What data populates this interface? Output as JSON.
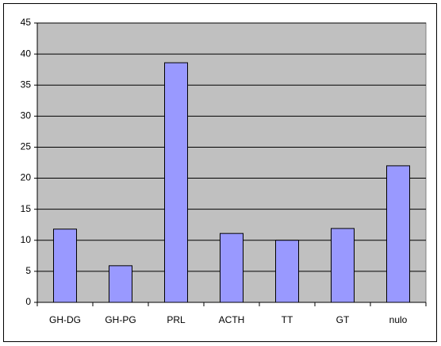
{
  "chart_data": {
    "type": "bar",
    "categories": [
      "GH-DG",
      "GH-PG",
      "PRL",
      "ACTH",
      "TT",
      "GT",
      "nulo"
    ],
    "values": [
      11.8,
      5.9,
      38.6,
      11.1,
      10,
      11.9,
      22
    ],
    "color": "#9999ff",
    "ylim": [
      0,
      45
    ],
    "yticks": [
      0,
      5,
      10,
      15,
      20,
      25,
      30,
      35,
      40,
      45
    ],
    "grid": true
  }
}
